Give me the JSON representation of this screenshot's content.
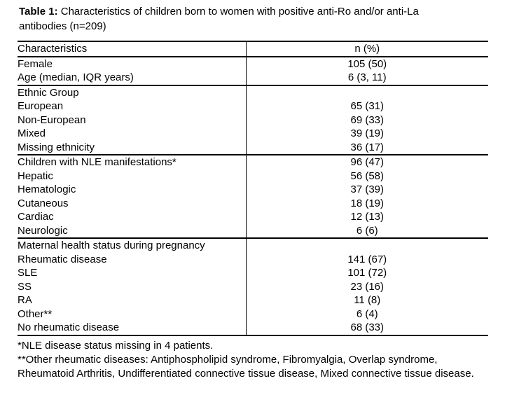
{
  "caption": {
    "label": "Table 1:",
    "text_line1": "Characteristics of children born to women with positive anti-Ro and/or anti-La",
    "text_line2": "antibodies (n=209)"
  },
  "table": {
    "columns": [
      "Characteristics",
      "n (%)"
    ],
    "sections": [
      {
        "rows": [
          {
            "label": "Female",
            "value": "105 (50)",
            "indent": 0
          },
          {
            "label": "Age (median, IQR years)",
            "value": "6 (3, 11)",
            "indent": 0
          }
        ]
      },
      {
        "rows": [
          {
            "label": "Ethnic Group",
            "value": "",
            "indent": 0
          },
          {
            "label": "European",
            "value": "65 (31)",
            "indent": 1
          },
          {
            "label": "Non-European",
            "value": "69 (33)",
            "indent": 1
          },
          {
            "label": "Mixed",
            "value": "39 (19)",
            "indent": 1
          },
          {
            "label": "Missing ethnicity",
            "value": "36 (17)",
            "indent": 1
          }
        ]
      },
      {
        "rows": [
          {
            "label": "Children with NLE manifestations*",
            "value": "96 (47)",
            "indent": 0
          },
          {
            "label": "Hepatic",
            "value": "56 (58)",
            "indent": 1
          },
          {
            "label": "Hematologic",
            "value": "37 (39)",
            "indent": 1
          },
          {
            "label": "Cutaneous",
            "value": "18 (19)",
            "indent": 1
          },
          {
            "label": "Cardiac",
            "value": "12 (13)",
            "indent": 1
          },
          {
            "label": "Neurologic",
            "value": "6 (6)",
            "indent": 1
          }
        ]
      },
      {
        "rows": [
          {
            "label": "Maternal health status during pregnancy",
            "value": "",
            "indent": 0
          },
          {
            "label": "Rheumatic disease",
            "value": "141 (67)",
            "indent": 1
          },
          {
            "label": "SLE",
            "value": "101 (72)",
            "indent": 2
          },
          {
            "label": "SS",
            "value": "23 (16)",
            "indent": 2
          },
          {
            "label": "RA",
            "value": "11 (8)",
            "indent": 2
          },
          {
            "label": "Other**",
            "value": "6 (4)",
            "indent": 2
          },
          {
            "label": "No rheumatic disease",
            "value": "68 (33)",
            "indent": 1
          }
        ]
      }
    ]
  },
  "footnotes": [
    "*NLE disease status missing in 4 patients.",
    "**Other rheumatic diseases: Antiphospholipid syndrome, Fibromyalgia, Overlap syndrome, Rheumatoid Arthritis, Undifferentiated connective tissue disease, Mixed connective tissue disease."
  ]
}
